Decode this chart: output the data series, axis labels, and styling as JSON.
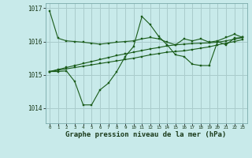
{
  "bg_color": "#c8eaea",
  "plot_bg_color": "#c8eaea",
  "grid_color": "#aacccc",
  "line_color": "#1a5c1a",
  "marker_color": "#1a5c1a",
  "xlabel": "Graphe pression niveau de la mer (hPa)",
  "xlabel_fontsize": 6.5,
  "ylim": [
    1013.55,
    1017.15
  ],
  "xlim": [
    -0.5,
    23.5
  ],
  "yticks": [
    1014,
    1015,
    1016,
    1017
  ],
  "xticks": [
    0,
    1,
    2,
    3,
    4,
    5,
    6,
    7,
    8,
    9,
    10,
    11,
    12,
    13,
    14,
    15,
    16,
    17,
    18,
    19,
    20,
    21,
    22,
    23
  ],
  "series": [
    [
      1016.92,
      1016.1,
      1016.02,
      1016.0,
      1015.98,
      1015.95,
      1015.92,
      1015.95,
      1015.98,
      1016.0,
      1016.02,
      1016.08,
      1016.12,
      1016.08,
      1015.98,
      1015.9,
      1016.08,
      1016.02,
      1016.08,
      1015.98,
      1016.02,
      1016.12,
      1016.22,
      1016.12
    ],
    [
      1015.1,
      1015.1,
      1015.12,
      1014.8,
      1014.1,
      1014.1,
      1014.55,
      1014.75,
      1015.1,
      1015.55,
      1015.85,
      1016.75,
      1016.5,
      1016.15,
      1015.9,
      1015.6,
      1015.55,
      1015.32,
      1015.28,
      1015.28,
      1016.0,
      1015.9,
      1016.1,
      1016.12
    ],
    [
      1015.1,
      1015.16,
      1015.22,
      1015.28,
      1015.34,
      1015.4,
      1015.46,
      1015.52,
      1015.58,
      1015.63,
      1015.68,
      1015.73,
      1015.78,
      1015.82,
      1015.87,
      1015.9,
      1015.92,
      1015.94,
      1015.95,
      1015.96,
      1015.98,
      1016.02,
      1016.07,
      1016.12
    ],
    [
      1015.1,
      1015.14,
      1015.18,
      1015.22,
      1015.26,
      1015.3,
      1015.34,
      1015.38,
      1015.42,
      1015.46,
      1015.5,
      1015.55,
      1015.6,
      1015.64,
      1015.68,
      1015.7,
      1015.72,
      1015.76,
      1015.8,
      1015.84,
      1015.9,
      1015.95,
      1016.0,
      1016.06
    ]
  ]
}
